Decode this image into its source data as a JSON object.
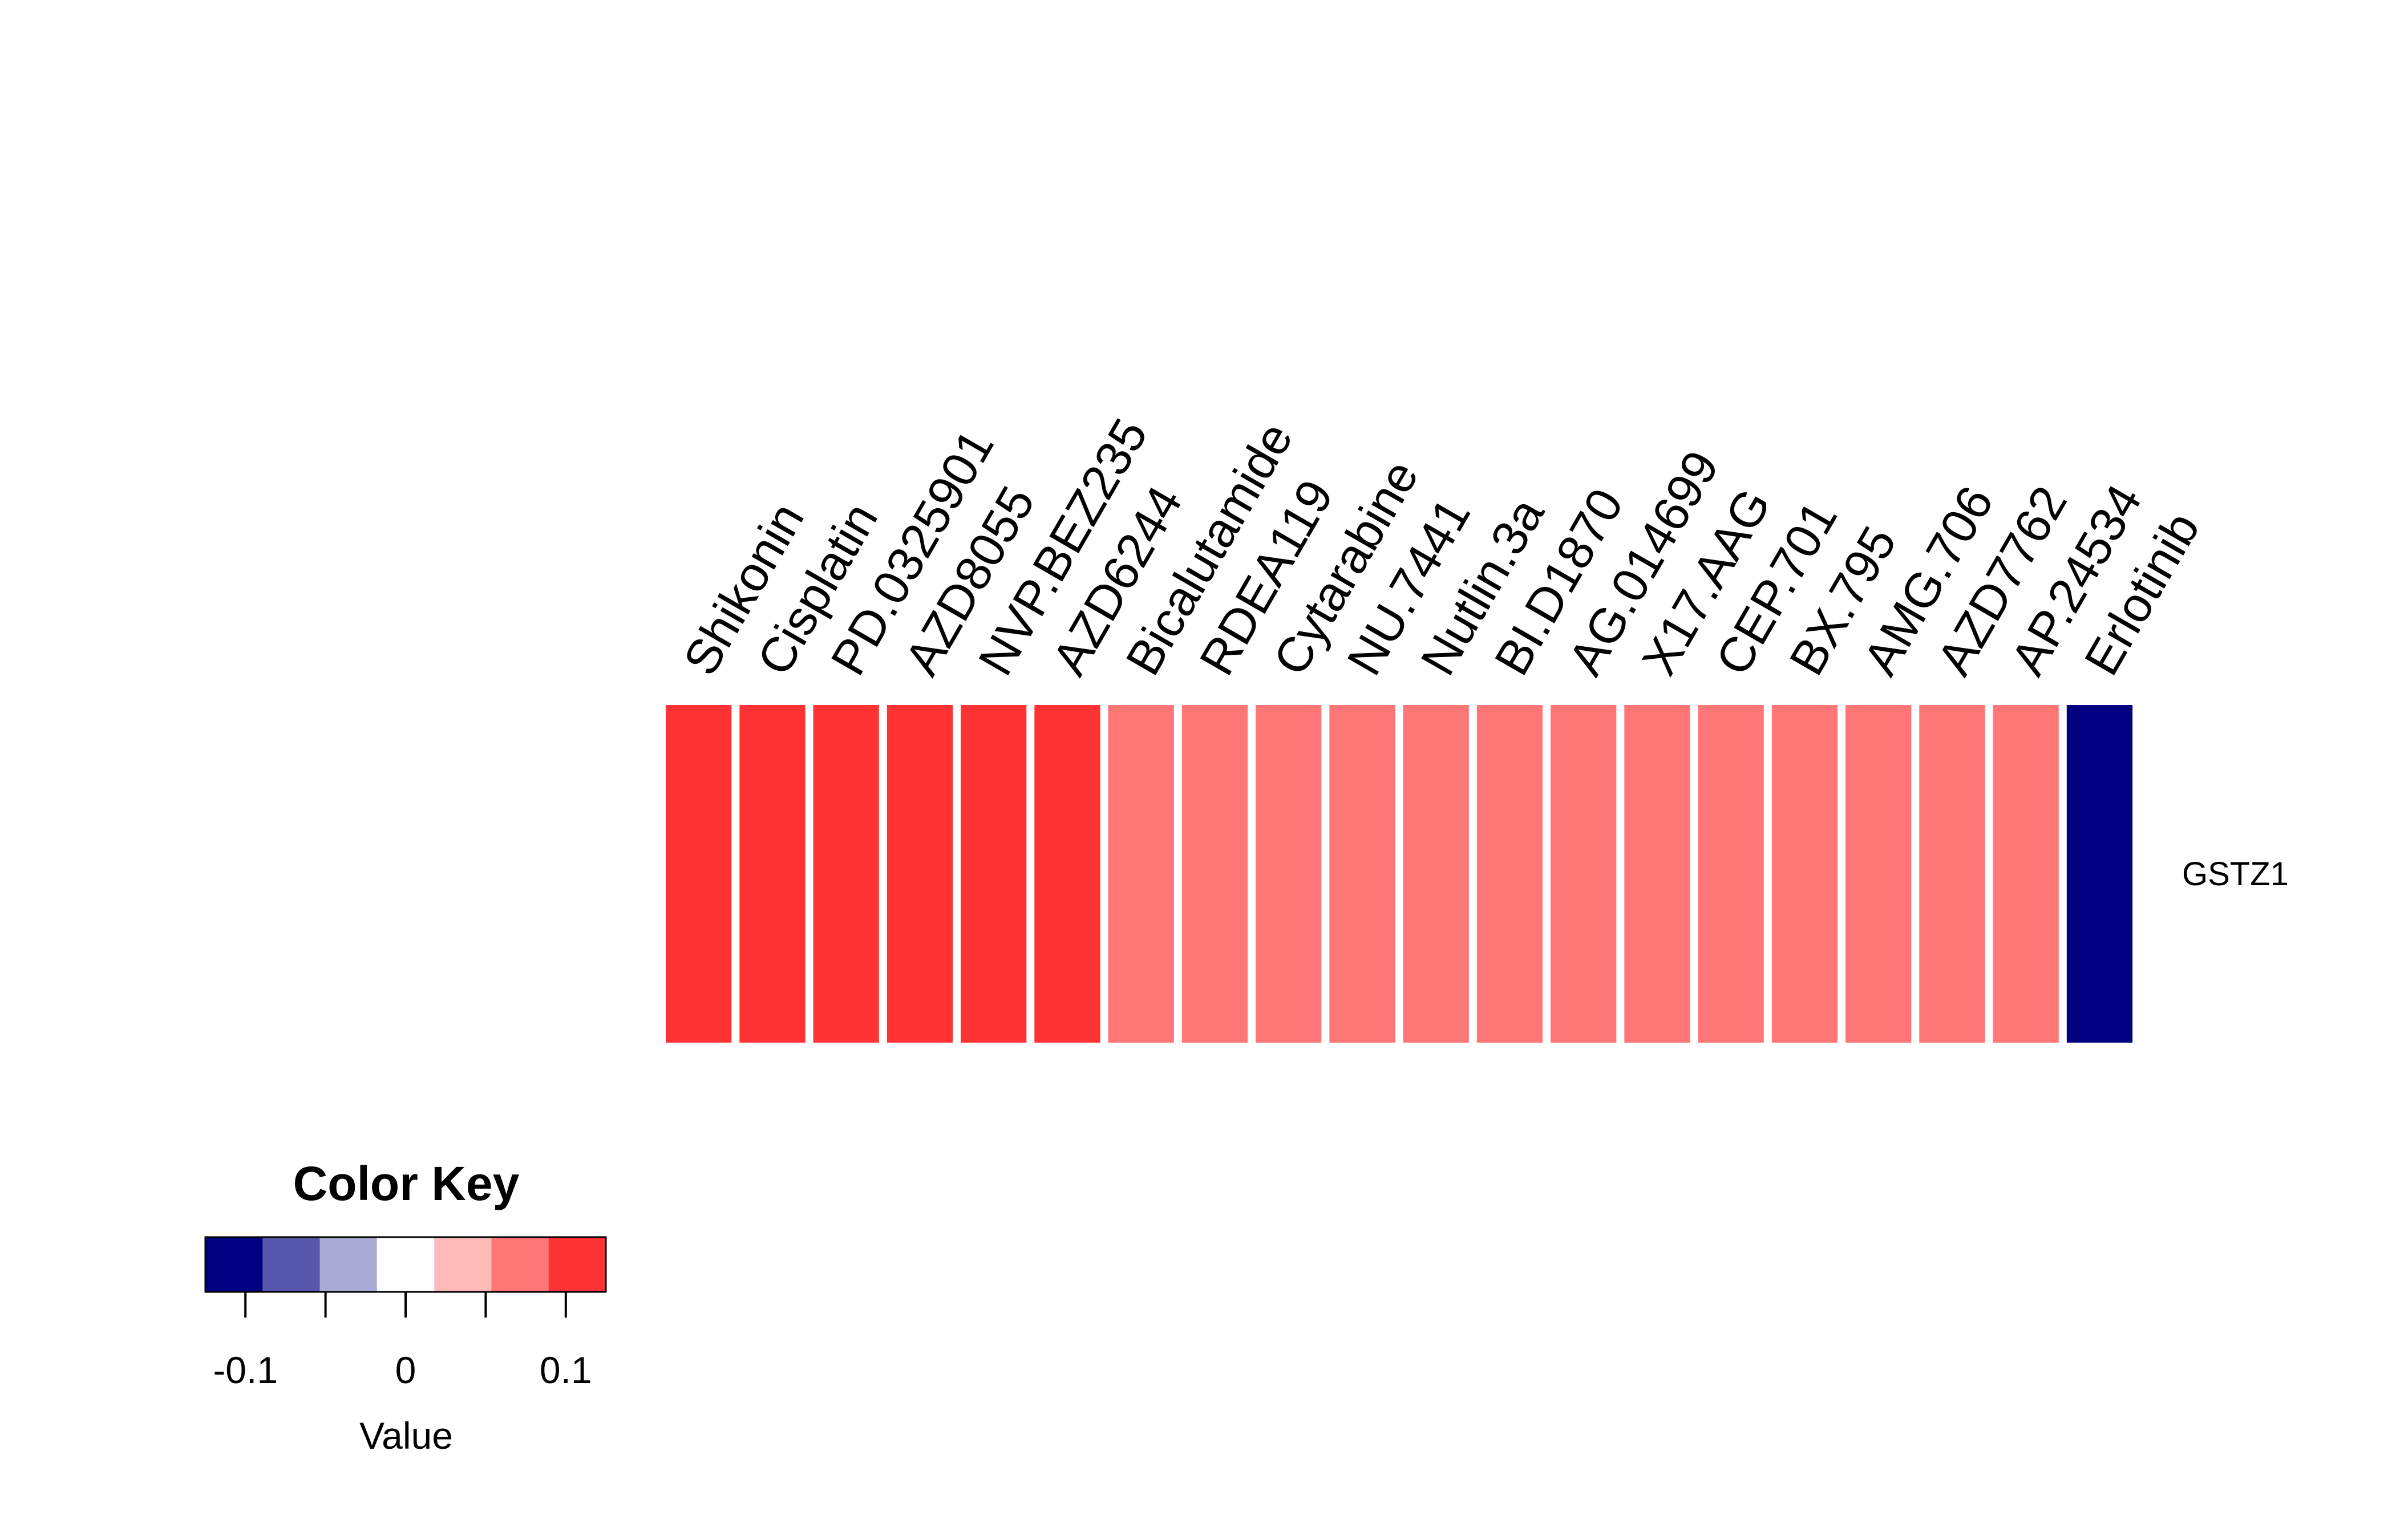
{
  "chart_data": {
    "type": "heatmap",
    "rows": [
      "GSTZ1"
    ],
    "columns": [
      "Shikonin",
      "Cisplatin",
      "PD.0325901",
      "AZD8055",
      "NVP.BEZ235",
      "AZD6244",
      "Bicalutamide",
      "RDEA119",
      "Cytarabine",
      "NU.7441",
      "Nutlin.3a",
      "BI.D1870",
      "AG.014699",
      "X17.AAG",
      "CEP.701",
      "BX.795",
      "AMG.706",
      "AZD7762",
      "AP.24534",
      "Erlotinib"
    ],
    "values": [
      [
        0.12,
        0.12,
        0.12,
        0.12,
        0.12,
        0.12,
        0.08,
        0.08,
        0.08,
        0.08,
        0.08,
        0.08,
        0.08,
        0.08,
        0.08,
        0.08,
        0.08,
        0.08,
        0.08,
        -0.12
      ]
    ]
  },
  "color_key": {
    "title": "Color Key",
    "xlabel": "Value",
    "range": [
      -0.125,
      0.125
    ],
    "breaks": [
      -0.125,
      -0.0893,
      -0.0536,
      -0.0179,
      0.0179,
      0.0536,
      0.0893,
      0.125
    ],
    "colors": [
      "#000080",
      "#5757ab",
      "#abaad5",
      "#ffffff",
      "#ffb9b9",
      "#ff7676",
      "#ff3333"
    ],
    "ticks": [
      -0.1,
      -0.05,
      0,
      0.05,
      0.1
    ],
    "tick_labels": [
      "-0.1",
      "",
      "0",
      "",
      "0.1"
    ]
  }
}
